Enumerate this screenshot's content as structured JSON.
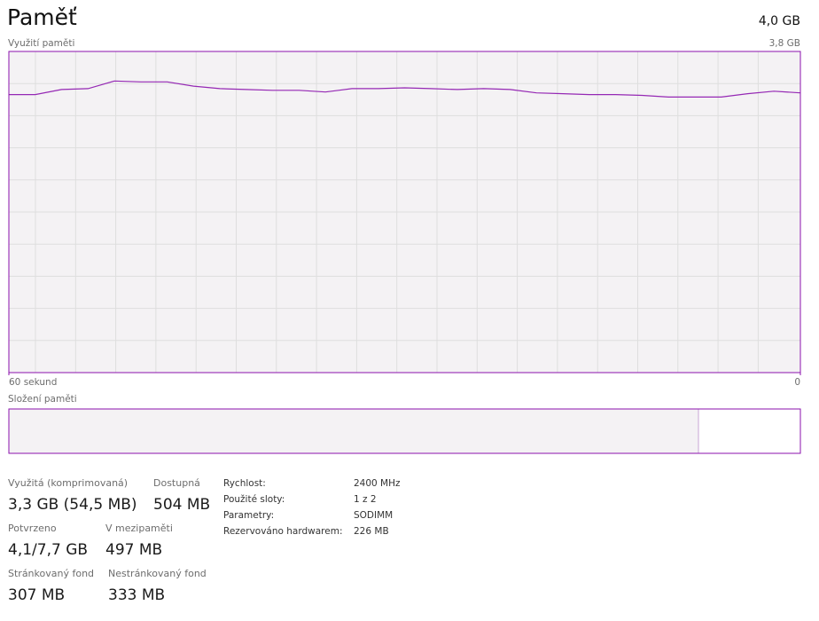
{
  "header": {
    "title": "Paměť",
    "total": "4,0 GB"
  },
  "chart_data": {
    "type": "line",
    "title": "Využití paměti",
    "x": [
      60,
      58,
      56,
      54,
      52,
      50,
      48,
      46,
      44,
      42,
      40,
      38,
      36,
      34,
      32,
      30,
      28,
      26,
      24,
      22,
      20,
      18,
      16,
      14,
      12,
      10,
      8,
      6,
      4,
      2,
      0
    ],
    "values": [
      3.29,
      3.29,
      3.35,
      3.36,
      3.45,
      3.44,
      3.44,
      3.39,
      3.36,
      3.35,
      3.34,
      3.34,
      3.32,
      3.36,
      3.36,
      3.37,
      3.36,
      3.35,
      3.36,
      3.35,
      3.31,
      3.3,
      3.29,
      3.29,
      3.28,
      3.26,
      3.26,
      3.26,
      3.3,
      3.33,
      3.31
    ],
    "color": "#9528b4",
    "xlim": [
      60,
      0
    ],
    "xticks": [
      {
        "value": 60,
        "label": "60 sekund"
      },
      0
    ],
    "ylim": [
      0,
      3.8
    ],
    "yticks": [
      {
        "value": 3.8,
        "label": "3,8 GB"
      }
    ],
    "grid": true
  },
  "composition": {
    "title": "Složení paměti"
  },
  "stats": [
    {
      "label": "Využitá (komprimovaná)",
      "value": "3,3 GB (54,5 MB)"
    },
    {
      "label": "Dostupná",
      "value": "504 MB"
    },
    {
      "label": "Potvrzeno",
      "value": "4,1/7,7 GB"
    },
    {
      "label": "V mezipaměti",
      "value": "497 MB"
    },
    {
      "label": "Stránkovaný fond",
      "value": "307 MB"
    },
    {
      "label": "Nestránkovaný fond",
      "value": "333 MB"
    }
  ],
  "details": [
    {
      "label": "Rychlost:",
      "value": "2400 MHz"
    },
    {
      "label": "Použité sloty:",
      "value": "1 z 2"
    },
    {
      "label": "Parametry:",
      "value": "SODIMM"
    },
    {
      "label": "Rezervováno hardwarem:",
      "value": "226 MB"
    }
  ]
}
